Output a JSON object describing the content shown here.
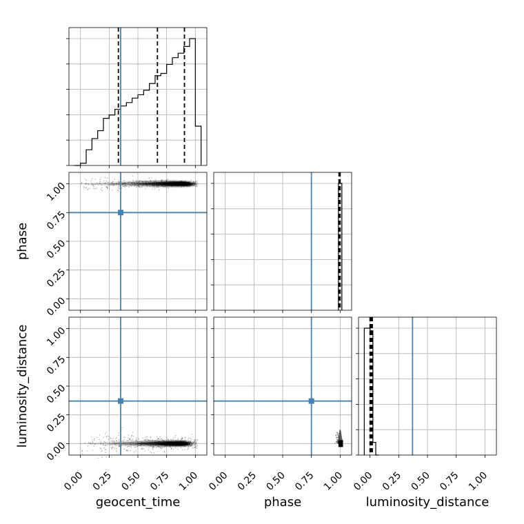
{
  "chart_data": {
    "type": "corner",
    "parameters": [
      "geocent_time",
      "phase",
      "luminosity_distance"
    ],
    "axis_range": [
      -0.1,
      1.1
    ],
    "ticks": [
      0.0,
      0.25,
      0.5,
      0.75,
      1.0
    ],
    "tick_labels": [
      "0.00",
      "0.25",
      "0.50",
      "0.75",
      "1.00"
    ],
    "grid": true,
    "colors": {
      "truth": "#4682b4",
      "histogram": "#000000",
      "samples": "#000000"
    },
    "truths": {
      "geocent_time": 0.35,
      "phase": 0.75,
      "luminosity_distance": 0.37
    },
    "marginals": {
      "geocent_time": {
        "bin_edges": [
          -0.05,
          0.0,
          0.05,
          0.1,
          0.15,
          0.2,
          0.25,
          0.3,
          0.35,
          0.4,
          0.45,
          0.5,
          0.55,
          0.6,
          0.65,
          0.7,
          0.75,
          0.8,
          0.85,
          0.9,
          0.95,
          1.0,
          1.05
        ],
        "counts": [
          0.0,
          0.02,
          0.14,
          0.24,
          0.31,
          0.42,
          0.45,
          0.5,
          0.53,
          0.56,
          0.6,
          0.63,
          0.67,
          0.73,
          0.8,
          0.82,
          0.9,
          0.96,
          1.0,
          1.06,
          1.13,
          0.35
        ],
        "quantiles": [
          0.33,
          0.67,
          0.905
        ]
      },
      "phase": {
        "bin_edges": [
          0.985,
          1.0,
          1.015
        ],
        "counts": [
          1.0,
          1.0
        ],
        "quantiles": [
          0.99,
          0.995,
          1.0
        ]
      },
      "luminosity_distance": {
        "bin_edges": [
          -0.05,
          0.0,
          0.025,
          0.05,
          0.075
        ],
        "counts": [
          1.0,
          0.98,
          0.1,
          0.0
        ],
        "quantiles": [
          0.0,
          0.01,
          0.02
        ]
      }
    },
    "joint": {
      "phase_vs_geocent_time": {
        "x_range": [
          0.0,
          1.02
        ],
        "y_center": 1.0,
        "y_spread": 0.02,
        "mode_x": 0.92
      },
      "luminosity_distance_vs_geocent_time": {
        "x_range": [
          0.0,
          1.02
        ],
        "y_center": 0.0,
        "y_spread": 0.04,
        "mode_x": 0.9
      },
      "luminosity_distance_vs_phase": {
        "x_center": 1.0,
        "y_center": 0.0,
        "mode": [
          1.0,
          0.0
        ]
      }
    }
  }
}
